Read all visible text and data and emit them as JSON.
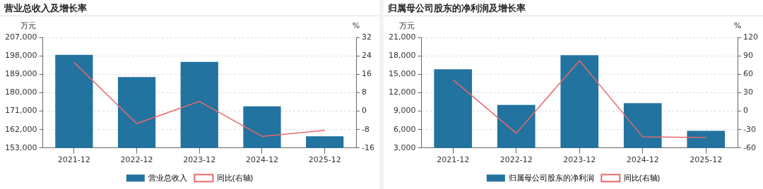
{
  "chart_data": [
    {
      "type": "bar",
      "title": "营业总收入及增长率",
      "ylabel": "万元",
      "y2label": "%",
      "categories": [
        "2021-12",
        "2022-12",
        "2023-12",
        "2024-12",
        "2025-12"
      ],
      "series": [
        {
          "name": "营业总收入",
          "color": "#22739f",
          "values": [
            198500,
            187600,
            195000,
            173300,
            158700
          ]
        },
        {
          "name": "同比(右轴)",
          "type": "line",
          "axis": "y2",
          "color": "#e8696b",
          "values": [
            21.1,
            -5.4,
            4.2,
            -11.0,
            -8.3
          ]
        }
      ],
      "ylim": [
        153000,
        207000
      ],
      "yticks": [
        {
          "value": 153000,
          "label": "153,000"
        },
        {
          "value": 162000,
          "label": "162,000"
        },
        {
          "value": 171000,
          "label": "171,000"
        },
        {
          "value": 180000,
          "label": "180,000"
        },
        {
          "value": 189000,
          "label": "189,000"
        },
        {
          "value": 198000,
          "label": "198,000"
        },
        {
          "value": 207000,
          "label": "207,000"
        }
      ],
      "y2lim": [
        -16,
        32
      ],
      "y2ticks": [
        -16,
        -8,
        0,
        8,
        16,
        24,
        32
      ],
      "grid": "y",
      "legend": "bottom",
      "marker": "none"
    },
    {
      "type": "bar",
      "title": "归属母公司股东的净利润及增长率",
      "ylabel": "万元",
      "y2label": "%",
      "categories": [
        "2021-12",
        "2022-12",
        "2023-12",
        "2024-12",
        "2025-12"
      ],
      "series": [
        {
          "name": "归属母公司股东的净利润",
          "color": "#22739f",
          "values": [
            15800,
            10000,
            18100,
            10300,
            5800
          ]
        },
        {
          "name": "同比(右轴)",
          "type": "line",
          "axis": "y2",
          "color": "#e8696b",
          "values": [
            51,
            -36,
            82,
            -42,
            -43
          ]
        }
      ],
      "ylim": [
        3000,
        21000
      ],
      "yticks": [
        {
          "value": 3000,
          "label": "3,000"
        },
        {
          "value": 6000,
          "label": "6,000"
        },
        {
          "value": 9000,
          "label": "9,000"
        },
        {
          "value": 12000,
          "label": "12,000"
        },
        {
          "value": 15000,
          "label": "15,000"
        },
        {
          "value": 18000,
          "label": "18,000"
        },
        {
          "value": 21000,
          "label": "21,000"
        }
      ],
      "y2lim": [
        -60,
        120
      ],
      "y2ticks": [
        -60,
        -30,
        0,
        30,
        60,
        90,
        120
      ],
      "grid": "y",
      "legend": "bottom",
      "marker": "none"
    }
  ]
}
